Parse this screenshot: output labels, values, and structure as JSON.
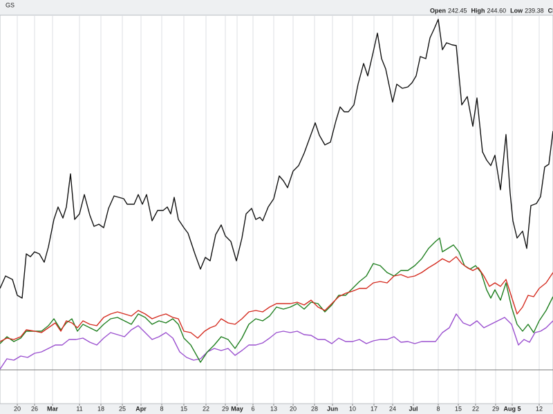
{
  "chart_data": {
    "type": "line",
    "symbol": "GS",
    "quote": [
      {
        "label": "Open",
        "value": "242.45"
      },
      {
        "label": "High",
        "value": "244.60"
      },
      {
        "label": "Low",
        "value": "239.38"
      },
      {
        "label": "Close"
      }
    ],
    "xlim": [
      0,
      800
    ],
    "xticks": [
      {
        "value": 25,
        "label": "20"
      },
      {
        "value": 50,
        "label": "26"
      },
      {
        "value": 76,
        "label": "Mar"
      },
      {
        "value": 115,
        "label": "11"
      },
      {
        "value": 146,
        "label": "18"
      },
      {
        "value": 177,
        "label": "25"
      },
      {
        "value": 204,
        "label": "Apr"
      },
      {
        "value": 234,
        "label": "8"
      },
      {
        "value": 266,
        "label": "15"
      },
      {
        "value": 298,
        "label": "22"
      },
      {
        "value": 326,
        "label": "29"
      },
      {
        "value": 343,
        "label": "May"
      },
      {
        "value": 366,
        "label": "6"
      },
      {
        "value": 396,
        "label": "13"
      },
      {
        "value": 424,
        "label": "20"
      },
      {
        "value": 455,
        "label": "28"
      },
      {
        "value": 481,
        "label": "Jun"
      },
      {
        "value": 510,
        "label": "10"
      },
      {
        "value": 541,
        "label": "17"
      },
      {
        "value": 568,
        "label": "24"
      },
      {
        "value": 598,
        "label": "Jul"
      },
      {
        "value": 634,
        "label": "8"
      },
      {
        "value": 663,
        "label": "15"
      },
      {
        "value": 688,
        "label": "22"
      },
      {
        "value": 717,
        "label": "29"
      },
      {
        "value": 741,
        "label": "Aug 5"
      },
      {
        "value": 780,
        "label": "12"
      }
    ],
    "month_ticks": [
      "Mar",
      "Apr",
      "May",
      "Jun",
      "Jul",
      "Aug 5"
    ],
    "ylim": [
      15,
      578
    ],
    "hline": 64,
    "grid": true,
    "series": [
      {
        "color": "#111111",
        "x": [
          0,
          8,
          18,
          25,
          32,
          38,
          44,
          50,
          57,
          64,
          70,
          78,
          84,
          91,
          96,
          102,
          108,
          115,
          122,
          130,
          136,
          143,
          150,
          157,
          165,
          172,
          179,
          184,
          194,
          200,
          206,
          212,
          220,
          228,
          236,
          242,
          247,
          252,
          258,
          266,
          272,
          282,
          290,
          297,
          304,
          312,
          320,
          326,
          334,
          342,
          350,
          356,
          364,
          370,
          376,
          380,
          388,
          396,
          404,
          410,
          416,
          424,
          432,
          440,
          448,
          456,
          462,
          470,
          478,
          486,
          492,
          498,
          504,
          512,
          518,
          526,
          532,
          540,
          546,
          552,
          558,
          568,
          574,
          582,
          590,
          596,
          602,
          608,
          616,
          622,
          628,
          634,
          640,
          646,
          654,
          660,
          668,
          676,
          684,
          690,
          698,
          704,
          710,
          716,
          724,
          732,
          738,
          742,
          748,
          756,
          762,
          768,
          776,
          782,
          788,
          794,
          800
        ],
        "values": [
          182,
          200,
          195,
          172,
          168,
          232,
          228,
          235,
          232,
          220,
          242,
          282,
          300,
          284,
          300,
          348,
          282,
          290,
          318,
          288,
          272,
          275,
          270,
          298,
          316,
          314,
          312,
          304,
          304,
          318,
          304,
          318,
          280,
          295,
          295,
          300,
          290,
          314,
          282,
          270,
          262,
          232,
          210,
          227,
          222,
          260,
          274,
          258,
          250,
          222,
          255,
          290,
          298,
          282,
          285,
          280,
          300,
          312,
          345,
          338,
          328,
          352,
          360,
          378,
          400,
          422,
          404,
          390,
          394,
          425,
          445,
          438,
          438,
          448,
          478,
          508,
          490,
          525,
          552,
          515,
          500,
          452,
          478,
          472,
          474,
          480,
          490,
          518,
          515,
          545,
          558,
          572,
          528,
          538,
          535,
          534,
          448,
          460,
          417,
          458,
          380,
          368,
          360,
          375,
          325,
          405,
          320,
          280,
          255,
          265,
          240,
          302,
          305,
          315,
          358,
          362,
          410
        ]
      },
      {
        "color": "#d42a1e",
        "x": [
          0,
          10,
          20,
          30,
          38,
          50,
          60,
          70,
          80,
          88,
          96,
          104,
          112,
          120,
          130,
          140,
          150,
          160,
          170,
          180,
          190,
          200,
          210,
          220,
          230,
          240,
          250,
          258,
          266,
          276,
          286,
          296,
          304,
          312,
          320,
          330,
          340,
          350,
          360,
          370,
          380,
          390,
          400,
          410,
          420,
          430,
          440,
          450,
          460,
          470,
          480,
          490,
          500,
          510,
          520,
          530,
          540,
          550,
          560,
          570,
          580,
          590,
          600,
          610,
          620,
          630,
          640,
          650,
          660,
          668,
          676,
          684,
          692,
          700,
          708,
          716,
          724,
          732,
          740,
          748,
          756,
          764,
          772,
          780,
          790,
          800
        ],
        "values": [
          105,
          110,
          108,
          112,
          122,
          120,
          118,
          125,
          132,
          120,
          135,
          132,
          125,
          135,
          130,
          128,
          140,
          145,
          148,
          145,
          142,
          150,
          145,
          138,
          142,
          145,
          140,
          138,
          120,
          118,
          110,
          120,
          125,
          128,
          138,
          132,
          130,
          138,
          148,
          150,
          148,
          155,
          160,
          160,
          160,
          162,
          158,
          165,
          155,
          150,
          160,
          170,
          175,
          178,
          182,
          182,
          190,
          192,
          190,
          200,
          202,
          198,
          200,
          205,
          212,
          218,
          225,
          220,
          228,
          218,
          212,
          208,
          212,
          200,
          185,
          190,
          185,
          195,
          170,
          145,
          155,
          172,
          170,
          182,
          190,
          205
        ]
      },
      {
        "color": "#1f7f1f",
        "x": [
          0,
          10,
          20,
          30,
          38,
          50,
          60,
          70,
          78,
          88,
          96,
          104,
          112,
          120,
          130,
          140,
          150,
          160,
          170,
          180,
          190,
          200,
          210,
          220,
          230,
          240,
          250,
          258,
          266,
          276,
          290,
          300,
          310,
          320,
          330,
          340,
          350,
          360,
          370,
          380,
          390,
          400,
          410,
          420,
          430,
          440,
          450,
          460,
          470,
          480,
          490,
          500,
          510,
          520,
          530,
          540,
          550,
          560,
          570,
          580,
          590,
          600,
          610,
          620,
          630,
          636,
          640,
          648,
          656,
          664,
          672,
          680,
          688,
          696,
          704,
          710,
          716,
          724,
          732,
          740,
          748,
          756,
          764,
          772,
          780,
          790,
          800
        ],
        "values": [
          102,
          112,
          105,
          110,
          120,
          120,
          120,
          128,
          138,
          122,
          132,
          138,
          120,
          130,
          125,
          120,
          130,
          138,
          140,
          135,
          130,
          145,
          140,
          130,
          135,
          132,
          138,
          130,
          110,
          100,
          75,
          90,
          100,
          112,
          108,
          95,
          110,
          130,
          138,
          135,
          142,
          155,
          152,
          155,
          160,
          152,
          162,
          160,
          148,
          158,
          172,
          172,
          182,
          192,
          200,
          218,
          215,
          205,
          200,
          208,
          208,
          215,
          225,
          240,
          250,
          255,
          235,
          240,
          245,
          235,
          215,
          210,
          215,
          205,
          180,
          168,
          180,
          165,
          190,
          155,
          130,
          120,
          130,
          118,
          135,
          150,
          170
        ]
      },
      {
        "color": "#9a4fcf",
        "x": [
          0,
          10,
          20,
          30,
          40,
          50,
          60,
          70,
          80,
          90,
          100,
          110,
          120,
          130,
          140,
          150,
          160,
          170,
          180,
          190,
          200,
          210,
          220,
          230,
          240,
          250,
          260,
          270,
          280,
          290,
          300,
          310,
          320,
          330,
          340,
          350,
          360,
          370,
          380,
          390,
          400,
          410,
          420,
          430,
          440,
          450,
          460,
          470,
          480,
          490,
          500,
          510,
          520,
          530,
          540,
          550,
          560,
          570,
          580,
          590,
          600,
          610,
          620,
          630,
          640,
          650,
          660,
          670,
          680,
          690,
          700,
          710,
          720,
          730,
          740,
          750,
          758,
          766,
          774,
          782,
          790,
          800
        ],
        "values": [
          65,
          80,
          78,
          84,
          82,
          88,
          90,
          95,
          100,
          100,
          108,
          108,
          110,
          104,
          100,
          110,
          118,
          115,
          112,
          122,
          128,
          118,
          108,
          112,
          118,
          110,
          90,
          82,
          78,
          80,
          90,
          95,
          92,
          95,
          85,
          92,
          100,
          100,
          103,
          110,
          118,
          120,
          118,
          120,
          115,
          114,
          108,
          108,
          102,
          110,
          105,
          105,
          108,
          102,
          106,
          108,
          108,
          112,
          104,
          105,
          102,
          105,
          105,
          105,
          118,
          125,
          145,
          132,
          128,
          135,
          125,
          130,
          135,
          140,
          130,
          100,
          108,
          104,
          118,
          120,
          125,
          135
        ]
      }
    ]
  }
}
